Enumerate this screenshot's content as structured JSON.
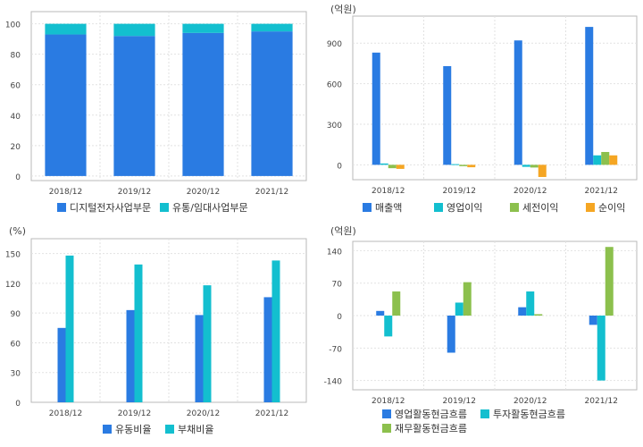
{
  "chart_data": [
    {
      "type": "bar",
      "stacked": true,
      "categories": [
        "2018/12",
        "2019/12",
        "2020/12",
        "2021/12"
      ],
      "series": [
        {
          "name": "디지털전자사업부문",
          "values": [
            93,
            92,
            94,
            95
          ],
          "color": "#2a7be2"
        },
        {
          "name": "유통/임대사업부문",
          "values": [
            7,
            8,
            6,
            5
          ],
          "color": "#13bfcf"
        }
      ],
      "yticks": [
        0,
        20,
        40,
        60,
        80,
        100
      ],
      "ylim": [
        -3,
        108
      ],
      "unit_label": "",
      "grid": "dotted",
      "legend": "bottom"
    },
    {
      "type": "bar",
      "categories": [
        "2018/12",
        "2019/12",
        "2020/12",
        "2021/12"
      ],
      "series": [
        {
          "name": "매출액",
          "values": [
            830,
            730,
            920,
            1020
          ],
          "color": "#2a7be2"
        },
        {
          "name": "영업이익",
          "values": [
            10,
            5,
            -15,
            70
          ],
          "color": "#13bfcf"
        },
        {
          "name": "세전이익",
          "values": [
            -25,
            -10,
            -20,
            95
          ],
          "color": "#8cc04d"
        },
        {
          "name": "순이익",
          "values": [
            -30,
            -18,
            -90,
            70
          ],
          "color": "#f5a623"
        }
      ],
      "yticks": [
        0,
        300,
        600,
        900
      ],
      "ylim": [
        -110,
        1100
      ],
      "unit_label": "(억원)",
      "grid": "dotted",
      "legend": "bottom"
    },
    {
      "type": "bar",
      "categories": [
        "2018/12",
        "2019/12",
        "2020/12",
        "2021/12"
      ],
      "series": [
        {
          "name": "유동비율",
          "values": [
            75,
            93,
            88,
            106
          ],
          "color": "#2a7be2"
        },
        {
          "name": "부채비율",
          "values": [
            148,
            139,
            118,
            143
          ],
          "color": "#13bfcf"
        }
      ],
      "yticks": [
        0,
        30,
        60,
        90,
        120,
        150
      ],
      "ylim": [
        0,
        165
      ],
      "unit_label": "(%)",
      "grid": "dotted",
      "legend": "bottom"
    },
    {
      "type": "bar",
      "categories": [
        "2018/12",
        "2019/12",
        "2020/12",
        "2021/12"
      ],
      "series": [
        {
          "name": "영업활동현금흐름",
          "values": [
            10,
            -80,
            18,
            -20
          ],
          "color": "#2a7be2"
        },
        {
          "name": "투자활동현금흐름",
          "values": [
            -45,
            28,
            52,
            -140
          ],
          "color": "#13bfcf"
        },
        {
          "name": "재무활동현금흐름",
          "values": [
            52,
            72,
            3,
            148
          ],
          "color": "#8cc04d"
        }
      ],
      "yticks": [
        -140,
        -70,
        0,
        70,
        140
      ],
      "ylim": [
        -160,
        160
      ],
      "unit_label": "(억원)",
      "grid": "dotted",
      "legend": "bottom"
    }
  ]
}
